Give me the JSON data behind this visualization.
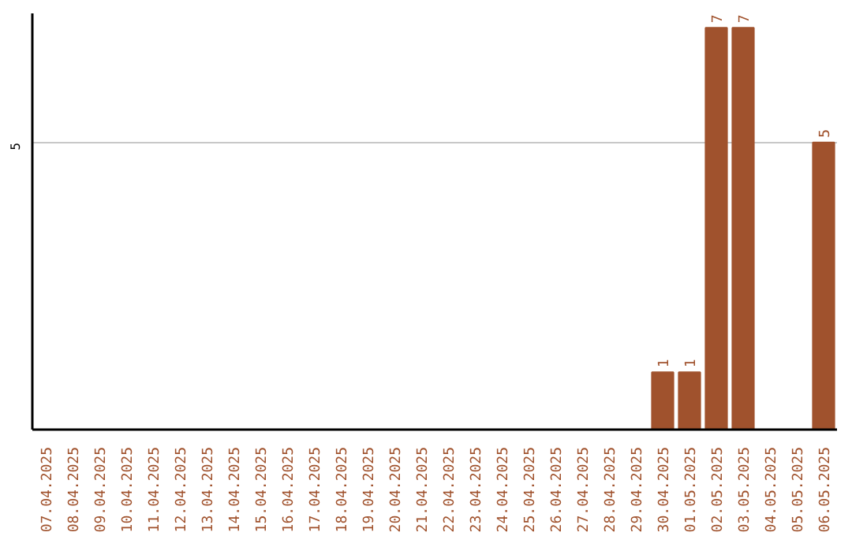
{
  "chart_data": {
    "type": "bar",
    "categories": [
      "07.04.2025",
      "08.04.2025",
      "09.04.2025",
      "10.04.2025",
      "11.04.2025",
      "12.04.2025",
      "13.04.2025",
      "14.04.2025",
      "15.04.2025",
      "16.04.2025",
      "17.04.2025",
      "18.04.2025",
      "19.04.2025",
      "20.04.2025",
      "21.04.2025",
      "22.04.2025",
      "23.04.2025",
      "24.04.2025",
      "25.04.2025",
      "26.04.2025",
      "27.04.2025",
      "28.04.2025",
      "29.04.2025",
      "30.04.2025",
      "01.05.2025",
      "02.05.2025",
      "03.05.2025",
      "04.05.2025",
      "05.05.2025",
      "06.05.2025"
    ],
    "values": [
      null,
      null,
      null,
      null,
      null,
      null,
      null,
      null,
      null,
      null,
      null,
      null,
      null,
      null,
      null,
      null,
      null,
      null,
      null,
      null,
      null,
      null,
      null,
      1,
      1,
      7,
      7,
      null,
      null,
      5
    ],
    "color": "#a0522d",
    "ylim": [
      0,
      7.25
    ],
    "yticks": [
      5
    ],
    "grid": "y",
    "data_labels": true
  }
}
